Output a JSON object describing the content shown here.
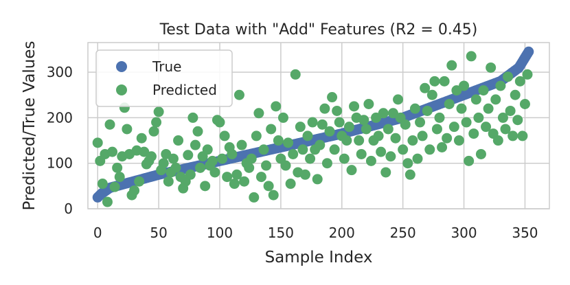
{
  "chart_data": {
    "type": "scatter",
    "title": "Test Data with \"Add\" Features (R2 = 0.45)",
    "xlabel": "Sample Index",
    "ylabel": "Predicted/True Values",
    "xlim": [
      -8,
      370
    ],
    "ylim": [
      0,
      365
    ],
    "xticks": [
      0,
      50,
      100,
      150,
      200,
      250,
      300,
      350
    ],
    "yticks": [
      0,
      100,
      200,
      300
    ],
    "grid": true,
    "legend_position": "top-left",
    "series": [
      {
        "name": "True",
        "color": "#4c72b0",
        "generator": "sorted",
        "x_start": 0,
        "x_end": 353,
        "count": 354,
        "y_start": 25,
        "y_end": 345,
        "anchors": [
          [
            0,
            25
          ],
          [
            3,
            33
          ],
          [
            10,
            46
          ],
          [
            50,
            75
          ],
          [
            100,
            105
          ],
          [
            150,
            135
          ],
          [
            200,
            165
          ],
          [
            250,
            200
          ],
          [
            300,
            250
          ],
          [
            330,
            280
          ],
          [
            345,
            310
          ],
          [
            353,
            345
          ]
        ]
      },
      {
        "name": "Predicted",
        "color": "#55a868",
        "points": [
          [
            0,
            145
          ],
          [
            2,
            105
          ],
          [
            4,
            55
          ],
          [
            6,
            120
          ],
          [
            8,
            15
          ],
          [
            10,
            185
          ],
          [
            12,
            125
          ],
          [
            14,
            48
          ],
          [
            16,
            90
          ],
          [
            18,
            70
          ],
          [
            20,
            115
          ],
          [
            22,
            222
          ],
          [
            24,
            175
          ],
          [
            26,
            120
          ],
          [
            28,
            30
          ],
          [
            30,
            40
          ],
          [
            32,
            128
          ],
          [
            34,
            60
          ],
          [
            36,
            155
          ],
          [
            38,
            125
          ],
          [
            40,
            98
          ],
          [
            42,
            105
          ],
          [
            44,
            115
          ],
          [
            46,
            170
          ],
          [
            48,
            190
          ],
          [
            50,
            213
          ],
          [
            52,
            85
          ],
          [
            54,
            100
          ],
          [
            56,
            120
          ],
          [
            58,
            60
          ],
          [
            60,
            80
          ],
          [
            62,
            110
          ],
          [
            64,
            90
          ],
          [
            66,
            150
          ],
          [
            68,
            70
          ],
          [
            70,
            45
          ],
          [
            72,
            60
          ],
          [
            74,
            118
          ],
          [
            76,
            75
          ],
          [
            78,
            200
          ],
          [
            80,
            140
          ],
          [
            82,
            170
          ],
          [
            84,
            90
          ],
          [
            86,
            115
          ],
          [
            88,
            50
          ],
          [
            90,
            130
          ],
          [
            92,
            95
          ],
          [
            94,
            105
          ],
          [
            96,
            80
          ],
          [
            98,
            195
          ],
          [
            100,
            190
          ],
          [
            102,
            110
          ],
          [
            104,
            160
          ],
          [
            106,
            70
          ],
          [
            108,
            135
          ],
          [
            110,
            120
          ],
          [
            112,
            55
          ],
          [
            114,
            75
          ],
          [
            116,
            250
          ],
          [
            118,
            140
          ],
          [
            120,
            60
          ],
          [
            122,
            100
          ],
          [
            124,
            90
          ],
          [
            126,
            110
          ],
          [
            128,
            25
          ],
          [
            130,
            160
          ],
          [
            132,
            210
          ],
          [
            134,
            70
          ],
          [
            136,
            130
          ],
          [
            138,
            95
          ],
          [
            140,
            50
          ],
          [
            142,
            175
          ],
          [
            144,
            30
          ],
          [
            146,
            225
          ],
          [
            148,
            150
          ],
          [
            150,
            110
          ],
          [
            152,
            200
          ],
          [
            154,
            95
          ],
          [
            156,
            145
          ],
          [
            158,
            55
          ],
          [
            160,
            120
          ],
          [
            162,
            295
          ],
          [
            164,
            80
          ],
          [
            166,
            180
          ],
          [
            168,
            130
          ],
          [
            170,
            75
          ],
          [
            172,
            160
          ],
          [
            174,
            110
          ],
          [
            176,
            190
          ],
          [
            178,
            130
          ],
          [
            180,
            65
          ],
          [
            182,
            140
          ],
          [
            184,
            185
          ],
          [
            186,
            220
          ],
          [
            188,
            100
          ],
          [
            190,
            170
          ],
          [
            192,
            245
          ],
          [
            194,
            130
          ],
          [
            196,
            215
          ],
          [
            198,
            190
          ],
          [
            200,
            160
          ],
          [
            202,
            110
          ],
          [
            204,
            150
          ],
          [
            206,
            180
          ],
          [
            208,
            85
          ],
          [
            210,
            225
          ],
          [
            212,
            200
          ],
          [
            214,
            150
          ],
          [
            216,
            120
          ],
          [
            218,
            195
          ],
          [
            220,
            175
          ],
          [
            222,
            230
          ],
          [
            224,
            105
          ],
          [
            226,
            150
          ],
          [
            228,
            200
          ],
          [
            230,
            160
          ],
          [
            232,
            125
          ],
          [
            234,
            210
          ],
          [
            236,
            80
          ],
          [
            238,
            175
          ],
          [
            240,
            115
          ],
          [
            242,
            210
          ],
          [
            244,
            155
          ],
          [
            246,
            240
          ],
          [
            248,
            200
          ],
          [
            250,
            130
          ],
          [
            252,
            185
          ],
          [
            254,
            100
          ],
          [
            256,
            75
          ],
          [
            258,
            150
          ],
          [
            260,
            220
          ],
          [
            262,
            110
          ],
          [
            264,
            190
          ],
          [
            266,
            160
          ],
          [
            268,
            265
          ],
          [
            270,
            215
          ],
          [
            272,
            130
          ],
          [
            274,
            250
          ],
          [
            276,
            280
          ],
          [
            278,
            175
          ],
          [
            280,
            200
          ],
          [
            282,
            135
          ],
          [
            284,
            280
          ],
          [
            286,
            155
          ],
          [
            288,
            230
          ],
          [
            290,
            315
          ],
          [
            292,
            180
          ],
          [
            294,
            260
          ],
          [
            296,
            150
          ],
          [
            298,
            220
          ],
          [
            300,
            270
          ],
          [
            302,
            190
          ],
          [
            304,
            105
          ],
          [
            306,
            335
          ],
          [
            308,
            165
          ],
          [
            310,
            240
          ],
          [
            312,
            200
          ],
          [
            314,
            120
          ],
          [
            316,
            260
          ],
          [
            318,
            180
          ],
          [
            320,
            220
          ],
          [
            322,
            310
          ],
          [
            324,
            165
          ],
          [
            326,
            240
          ],
          [
            328,
            150
          ],
          [
            330,
            270
          ],
          [
            332,
            200
          ],
          [
            334,
            175
          ],
          [
            336,
            290
          ],
          [
            338,
            215
          ],
          [
            340,
            160
          ],
          [
            342,
            250
          ],
          [
            344,
            195
          ],
          [
            346,
            280
          ],
          [
            348,
            160
          ],
          [
            350,
            230
          ],
          [
            352,
            295
          ]
        ]
      }
    ]
  }
}
